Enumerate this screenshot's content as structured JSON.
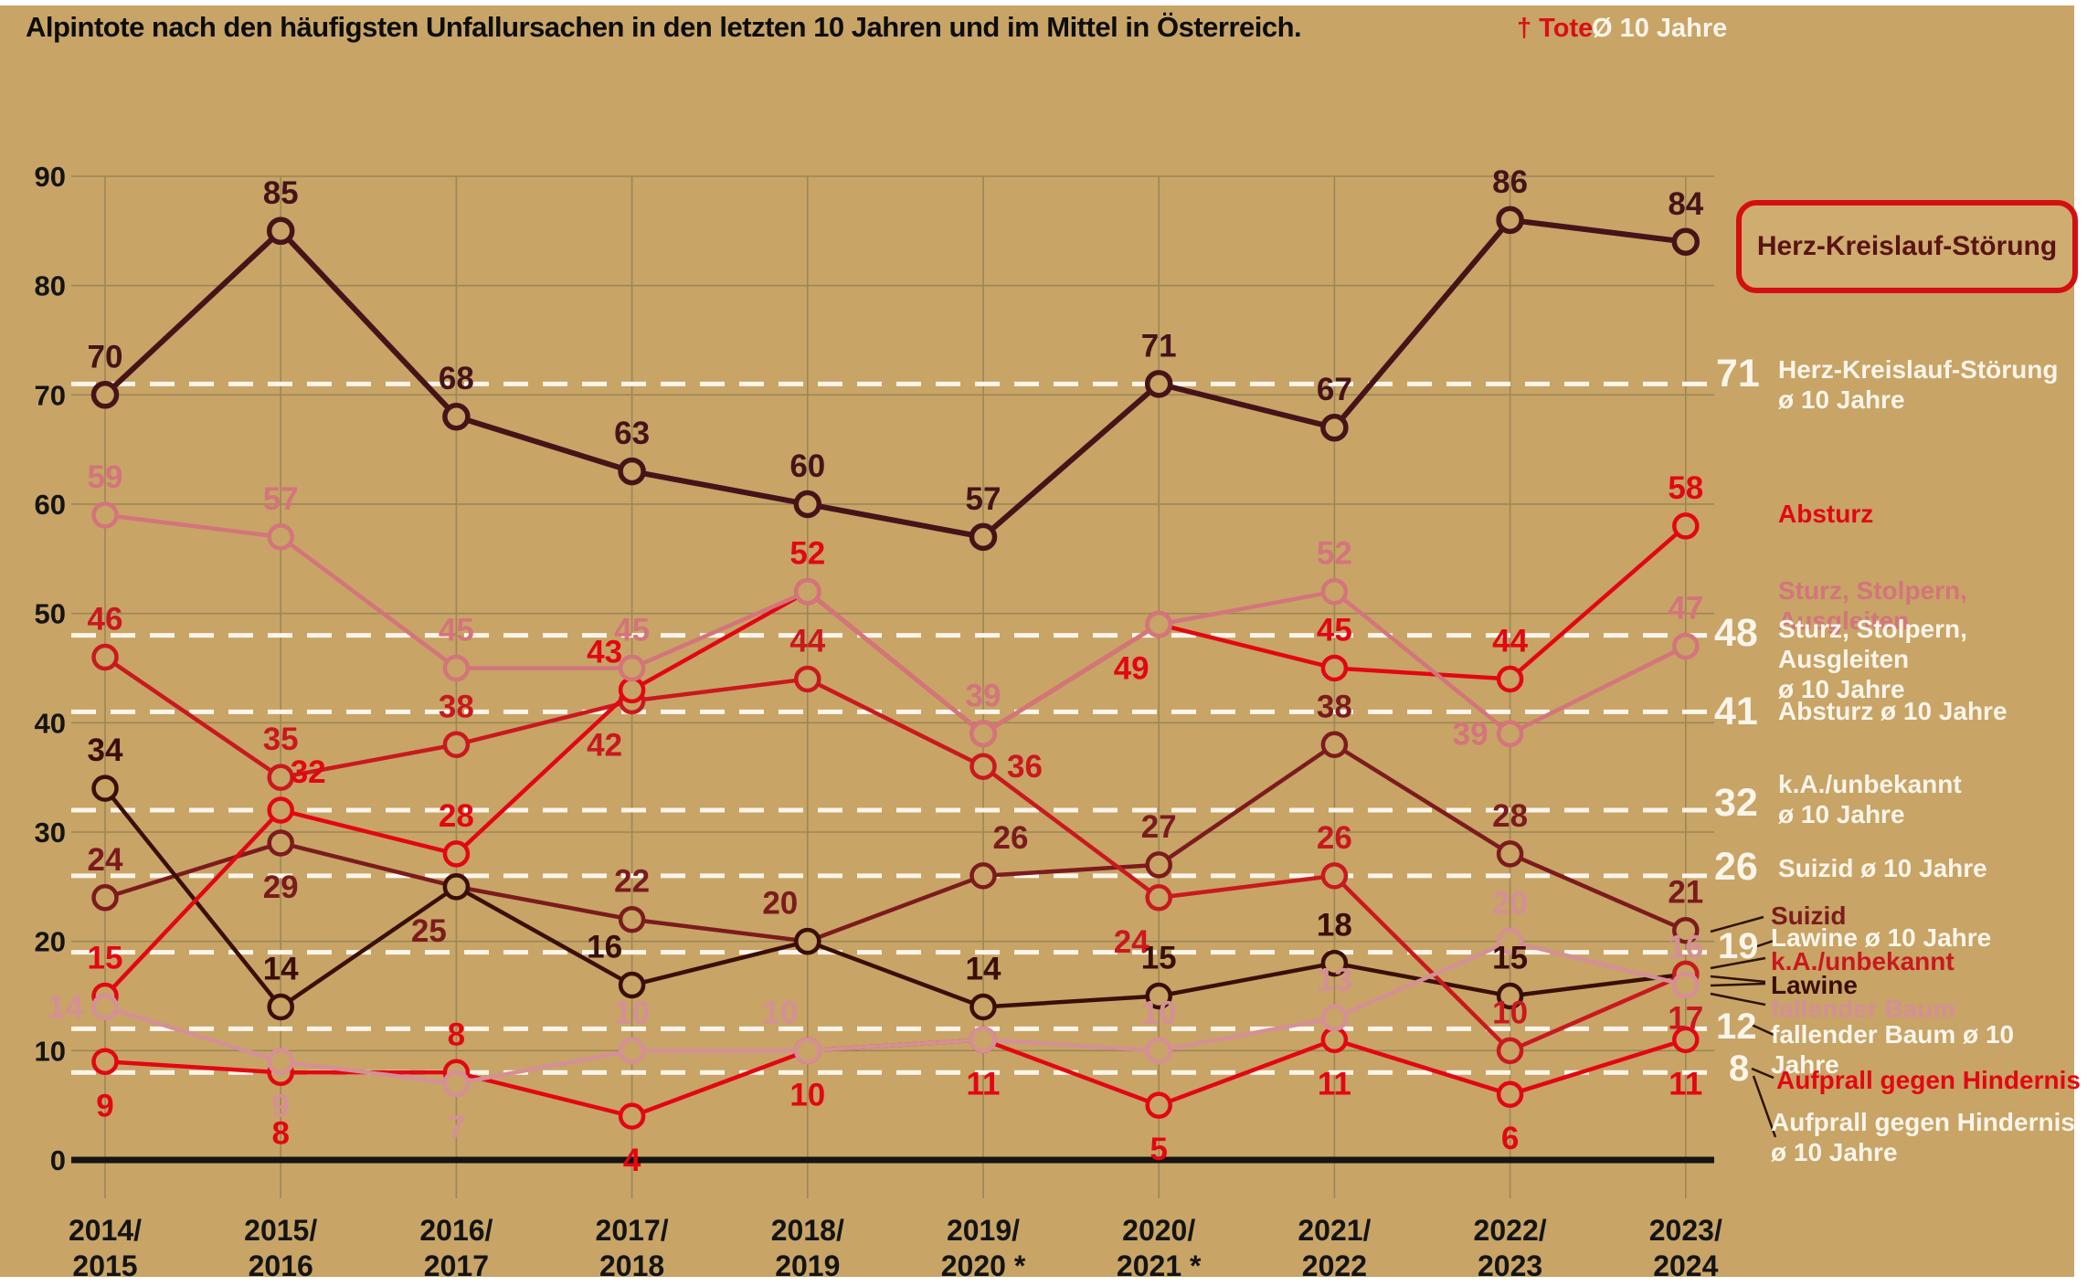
{
  "title": "Alpintote nach den häufigsten Unfallursachen in den letzten 10 Jahren und im Mittel in Österreich.",
  "top_legend": {
    "tote": "† Tote",
    "avg": "Ø 10 Jahre"
  },
  "colors": {
    "background": "#c8a466",
    "grid": "#9c8756",
    "dashed": "#faf5ea",
    "baseline": "#141414",
    "axis_text": "#141414",
    "connector": "#2e1205",
    "herz": "#451419",
    "suizid": "#7c1b1d",
    "lawine": "#3a0f08",
    "ka": "#c9191f",
    "absturz": "#e20713",
    "aufprall": "#e20713",
    "sturz": "#d4747c",
    "fallender_baum": "#d58f96"
  },
  "chart_data": {
    "type": "line",
    "title": "Alpintote nach den häufigsten Unfallursachen in den letzten 10 Jahren und im Mittel in Österreich.",
    "xlabel": "",
    "ylabel": "",
    "ylim": [
      0,
      90
    ],
    "y_ticks": [
      0,
      10,
      20,
      30,
      40,
      50,
      60,
      70,
      80,
      90
    ],
    "grid": true,
    "legend_position": "right",
    "categories": [
      "2014/2015",
      "2015/2016",
      "2016/2017",
      "2017/2018",
      "2018/2019",
      "2019/2020 *",
      "2020/2021 *",
      "2021/2022",
      "2022/2023",
      "2023/2024"
    ],
    "x_tick_lines": [
      [
        "2014/",
        "2015"
      ],
      [
        "2015/",
        "2016"
      ],
      [
        "2016/",
        "2017"
      ],
      [
        "2017/",
        "2018"
      ],
      [
        "2018/",
        "2019"
      ],
      [
        "2019/",
        "2020 *"
      ],
      [
        "2020/",
        "2021 *"
      ],
      [
        "2021/",
        "2022"
      ],
      [
        "2022/",
        "2023"
      ],
      [
        "2023/",
        "2024"
      ]
    ],
    "avg_lines": [
      71,
      48,
      41,
      32,
      26,
      19,
      12,
      8
    ],
    "series": [
      {
        "id": "herz",
        "name": "Herz-Kreislauf-Störung",
        "color_key": "herz",
        "avg": 71,
        "width": 6,
        "values": [
          70,
          85,
          68,
          63,
          60,
          57,
          71,
          67,
          86,
          84
        ],
        "label_pos": [
          "a",
          "a",
          "a",
          "a",
          "a",
          "a",
          "a",
          "a",
          "a",
          "a"
        ]
      },
      {
        "id": "suizid",
        "name": "Suizid",
        "color_key": "suizid",
        "avg": 26,
        "width": 4.5,
        "values": [
          24,
          29,
          25,
          22,
          20,
          26,
          27,
          38,
          28,
          21
        ],
        "label_pos": [
          "a",
          "b",
          "bl",
          "a",
          "al",
          "ar",
          "a",
          "a",
          "a",
          "a"
        ]
      },
      {
        "id": "lawine",
        "name": "Lawine",
        "color_key": "lawine",
        "avg": 19,
        "width": 4.5,
        "values": [
          34,
          14,
          25,
          16,
          20,
          14,
          15,
          18,
          15,
          17
        ],
        "label_pos": [
          "a",
          "a",
          "n",
          "al",
          "n",
          "a",
          "a",
          "a",
          "a",
          "n"
        ]
      },
      {
        "id": "ka",
        "name": "k.A./unbekannt",
        "color_key": "ka",
        "avg": 32,
        "width": 4.5,
        "values": [
          46,
          35,
          38,
          42,
          44,
          36,
          24,
          26,
          10,
          17
        ],
        "label_pos": [
          "a",
          "a",
          "a",
          "bl",
          "a",
          "r",
          "bl",
          "a",
          "a",
          "b"
        ]
      },
      {
        "id": "absturz",
        "name": "Absturz",
        "color_key": "absturz",
        "avg": 41,
        "width": 4.5,
        "values": [
          15,
          32,
          28,
          43,
          52,
          39,
          49,
          45,
          44,
          58
        ],
        "label_pos": [
          "a",
          "ar",
          "a",
          "al",
          "a",
          "n",
          "bl",
          "a",
          "a",
          "a"
        ]
      },
      {
        "id": "aufprall",
        "name": "Aufprall gegen Hindernis",
        "color_key": "aufprall",
        "avg": 8,
        "width": 4.5,
        "values": [
          9,
          8,
          8,
          4,
          10,
          11,
          5,
          11,
          6,
          11
        ],
        "label_pos": [
          "b",
          "b2",
          "a",
          "b",
          "b",
          "b",
          "b",
          "b",
          "b",
          "b"
        ]
      },
      {
        "id": "sturz",
        "name": "Sturz, Stolpern, Ausgleiten",
        "color_key": "sturz",
        "avg": 48,
        "width": 4.5,
        "values": [
          59,
          57,
          45,
          45,
          52,
          39,
          49,
          52,
          39,
          47
        ],
        "label_pos": [
          "a",
          "a",
          "a",
          "a",
          "n",
          "a",
          "n",
          "a",
          "l",
          "a"
        ]
      },
      {
        "id": "fallender_baum",
        "name": "fallender Baum",
        "color_key": "fallender_baum",
        "avg": 12,
        "width": 4.5,
        "values": [
          14,
          9,
          7,
          10,
          10,
          11,
          10,
          13,
          20,
          16
        ],
        "label_pos": [
          "l",
          "b",
          "b",
          "a",
          "al",
          "n",
          "a",
          "a",
          "a",
          "a"
        ]
      }
    ]
  },
  "right_legend": {
    "box_label": "Herz-Kreislauf-Störung",
    "avg71": {
      "num": "71",
      "lines": [
        "Herz-Kreislauf-Störung",
        "ø 10 Jahre"
      ]
    },
    "absturz_label": "Absturz",
    "sturz_label": "Sturz, Stolpern, Ausgleiten",
    "avg48": {
      "num": "48",
      "lines": [
        "Sturz, Stolpern, Ausgleiten",
        "ø 10 Jahre"
      ]
    },
    "avg41": {
      "num": "41",
      "lines": [
        "Absturz ø 10 Jahre"
      ]
    },
    "avg32": {
      "num": "32",
      "lines": [
        "k.A./unbekannt",
        "ø 10 Jahre"
      ]
    },
    "avg26": {
      "num": "26",
      "lines": [
        "Suizid ø 10 Jahre"
      ]
    },
    "suizid_label": "Suizid",
    "avg19": {
      "num": "19",
      "lines": [
        "Lawine ø 10 Jahre"
      ]
    },
    "ka_label": "k.A./unbekannt",
    "lawine_label": "Lawine",
    "fb_label": "fallender Baum",
    "avg12": {
      "num": "12",
      "lines": [
        "fallender Baum ø 10 Jahre"
      ]
    },
    "avg8": {
      "num": "8"
    },
    "aufprall_label": "Aufprall gegen Hindernis",
    "aufprall_avg_lines": [
      "Aufprall gegen Hindernis",
      "ø 10 Jahre"
    ]
  }
}
